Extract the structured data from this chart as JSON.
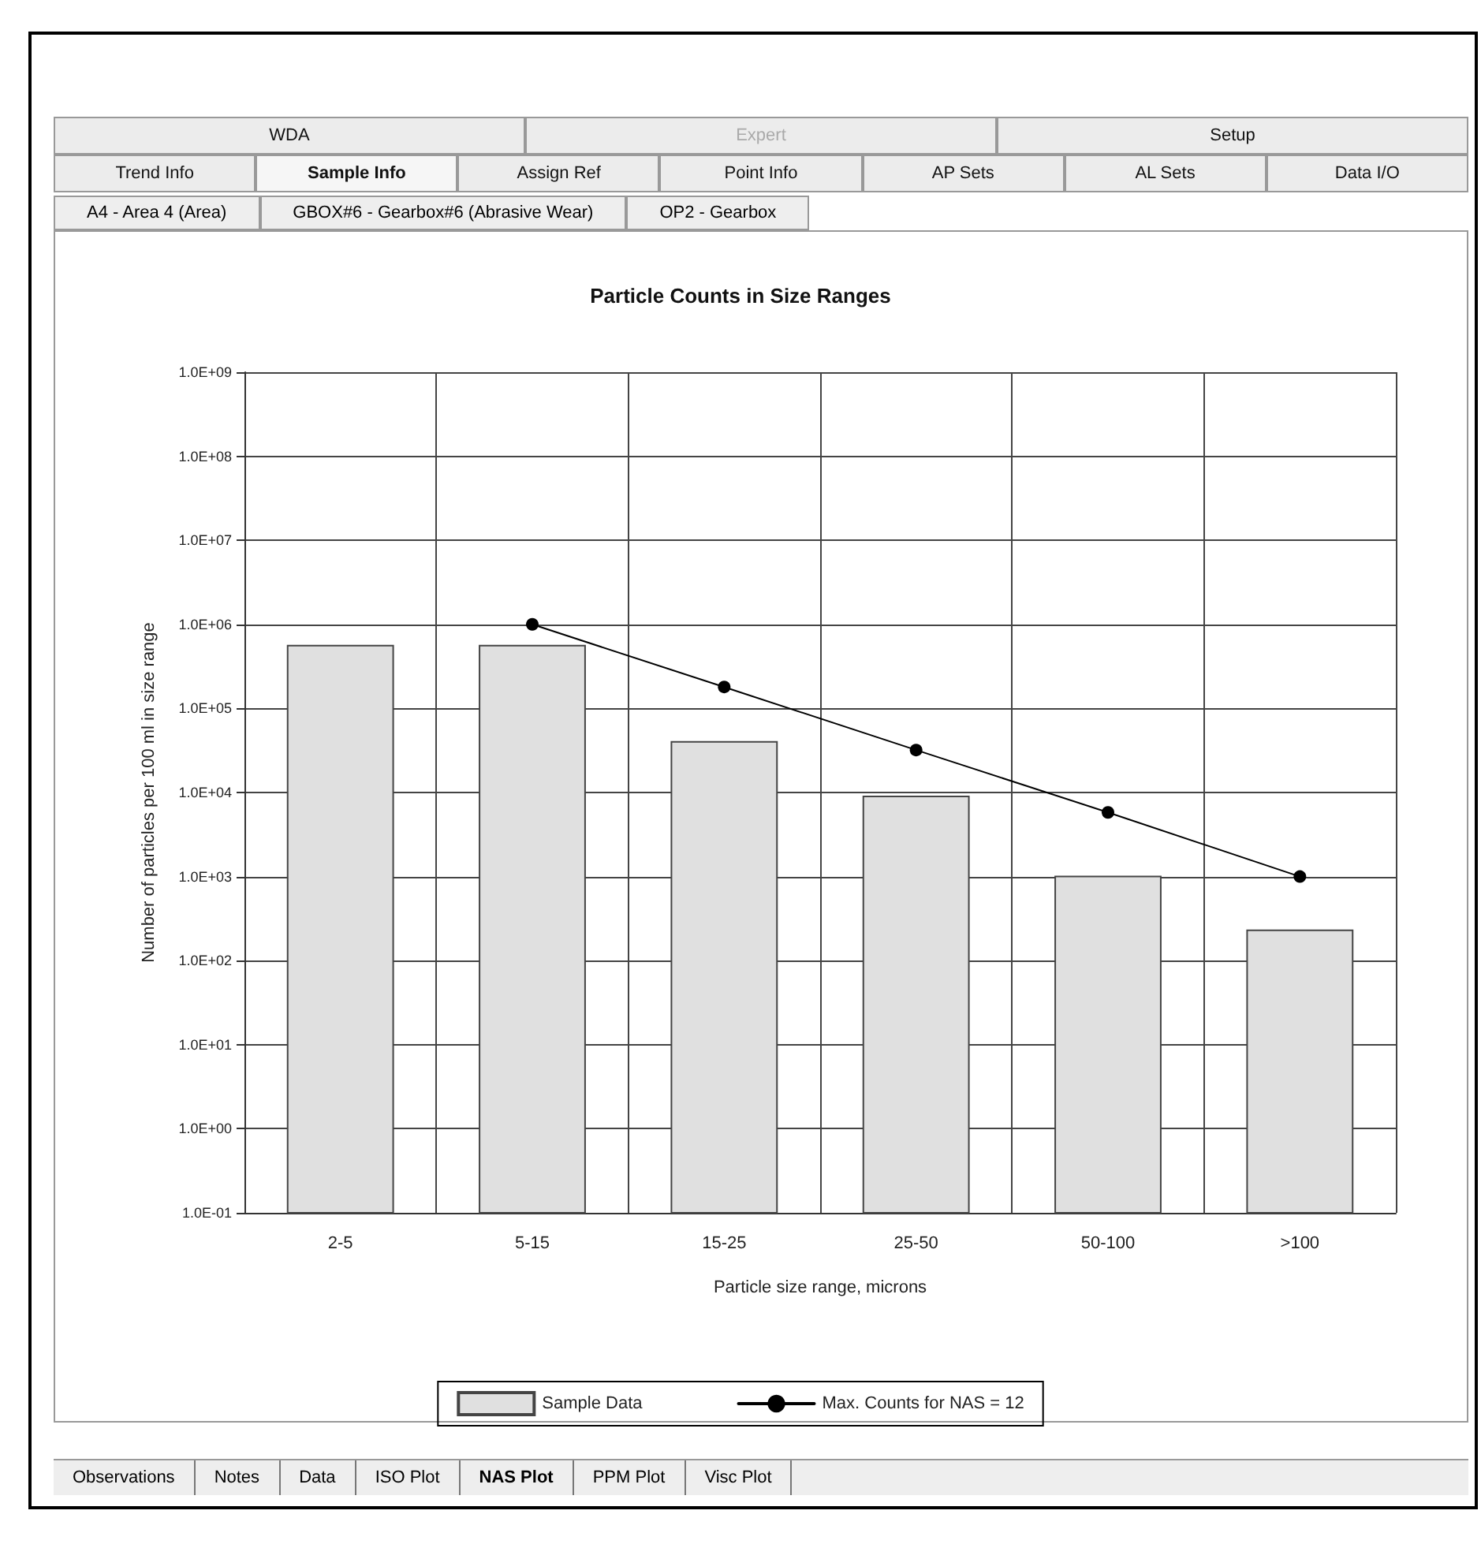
{
  "chart_data": {
    "type": "bar",
    "title": "Particle Counts in Size Ranges",
    "xlabel": "Particle size range, microns",
    "ylabel": "Number of particles per 100 ml in size range",
    "categories": [
      "2-5",
      "5-15",
      "15-25",
      "25-50",
      "50-100",
      ">100"
    ],
    "series": [
      {
        "name": "Sample Data",
        "color": "#e0e0e0",
        "values": [
          560000,
          560000,
          40000,
          9000,
          1000,
          230
        ]
      },
      {
        "name": "Max. Counts for NAS = 12",
        "type": "line",
        "color": "#000000",
        "marker": "circle",
        "line_style": "solid",
        "values": [
          null,
          1000000,
          180000,
          32000,
          5800,
          1000
        ]
      }
    ],
    "log": "y",
    "ylim": [
      0.1,
      1000000000
    ],
    "yticks": [
      {
        "value": 0.1,
        "label": "1.0E-01"
      },
      {
        "value": 1,
        "label": "1.0E+00"
      },
      {
        "value": 10,
        "label": "1.0E+01"
      },
      {
        "value": 100,
        "label": "1.0E+02"
      },
      {
        "value": 1000,
        "label": "1.0E+03"
      },
      {
        "value": 10000,
        "label": "1.0E+04"
      },
      {
        "value": 100000,
        "label": "1.0E+05"
      },
      {
        "value": 1000000,
        "label": "1.0E+06"
      },
      {
        "value": 10000000,
        "label": "1.0E+07"
      },
      {
        "value": 100000000,
        "label": "1.0E+08"
      },
      {
        "value": 1000000000,
        "label": "1.0E+09"
      }
    ],
    "grid": true,
    "legend": "bottom",
    "annotations": [
      "WDA",
      "Expert",
      "Setup",
      "Trend Info",
      "Sample Info",
      "Assign Ref",
      "Point Info",
      "AP Sets",
      "AL Sets",
      "Data I/O",
      "A4 - Area 4 (Area)",
      "GBOX#6 - Gearbox#6 (Abrasive Wear)",
      "OP2 - Gearbox",
      "Observations",
      "Notes",
      "Data",
      "ISO Plot",
      "NAS Plot",
      "PPM Plot",
      "Visc Plot"
    ]
  }
}
